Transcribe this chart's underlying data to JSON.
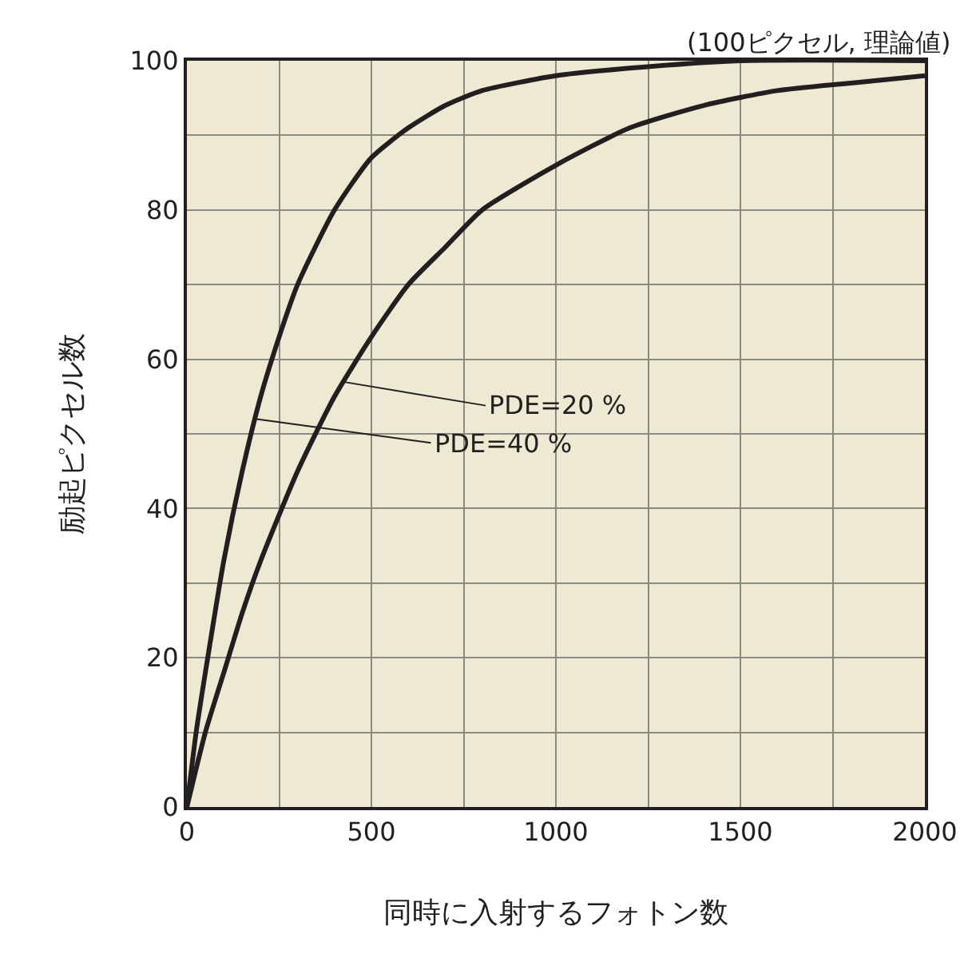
{
  "chart_data": {
    "type": "line",
    "xlabel": "同時に入射するフォトン数",
    "ylabel": "励起ピクセル数",
    "annotations": [
      "(100ピクセル, 理論値)",
      {
        "text": "PDE=20 %",
        "x": 420,
        "y": 57
      },
      {
        "text": "PDE=40 %",
        "x": 185,
        "y": 52
      }
    ],
    "series": [
      {
        "color": "#231f20",
        "x": [
          0,
          50,
          100,
          150,
          200,
          300,
          400,
          500,
          600,
          700,
          800,
          1000,
          1200,
          1400,
          1600,
          1800,
          2000
        ],
        "values": [
          0,
          10,
          18,
          26,
          33,
          45,
          55,
          63,
          70,
          75,
          80,
          86,
          91,
          94,
          96,
          97,
          98
        ]
      },
      {
        "color": "#231f20",
        "x": [
          0,
          25,
          50,
          100,
          150,
          200,
          250,
          300,
          400,
          500,
          600,
          700,
          800,
          1000,
          1200,
          1500,
          2000
        ],
        "values": [
          0,
          10,
          18,
          33,
          45,
          55,
          63,
          70,
          80,
          87,
          91,
          94,
          96,
          98,
          99,
          100,
          100
        ]
      }
    ],
    "xlim": [
      0,
      2000
    ],
    "ylim": [
      0,
      100
    ],
    "xticks": [
      0,
      {
        "value": 250,
        "label": null
      },
      500,
      {
        "value": 750,
        "label": null
      },
      1000,
      {
        "value": 1250,
        "label": null
      },
      1500,
      {
        "value": 1750,
        "label": null
      },
      2000
    ],
    "yticks": [
      0,
      {
        "value": 10,
        "label": null
      },
      20,
      {
        "value": 30,
        "label": null
      },
      40,
      {
        "value": 50,
        "label": null
      },
      60,
      {
        "value": 70,
        "label": null
      },
      80,
      {
        "value": 90,
        "label": null
      },
      100
    ],
    "grid": true,
    "marker": "none",
    "line_style": "solid"
  }
}
